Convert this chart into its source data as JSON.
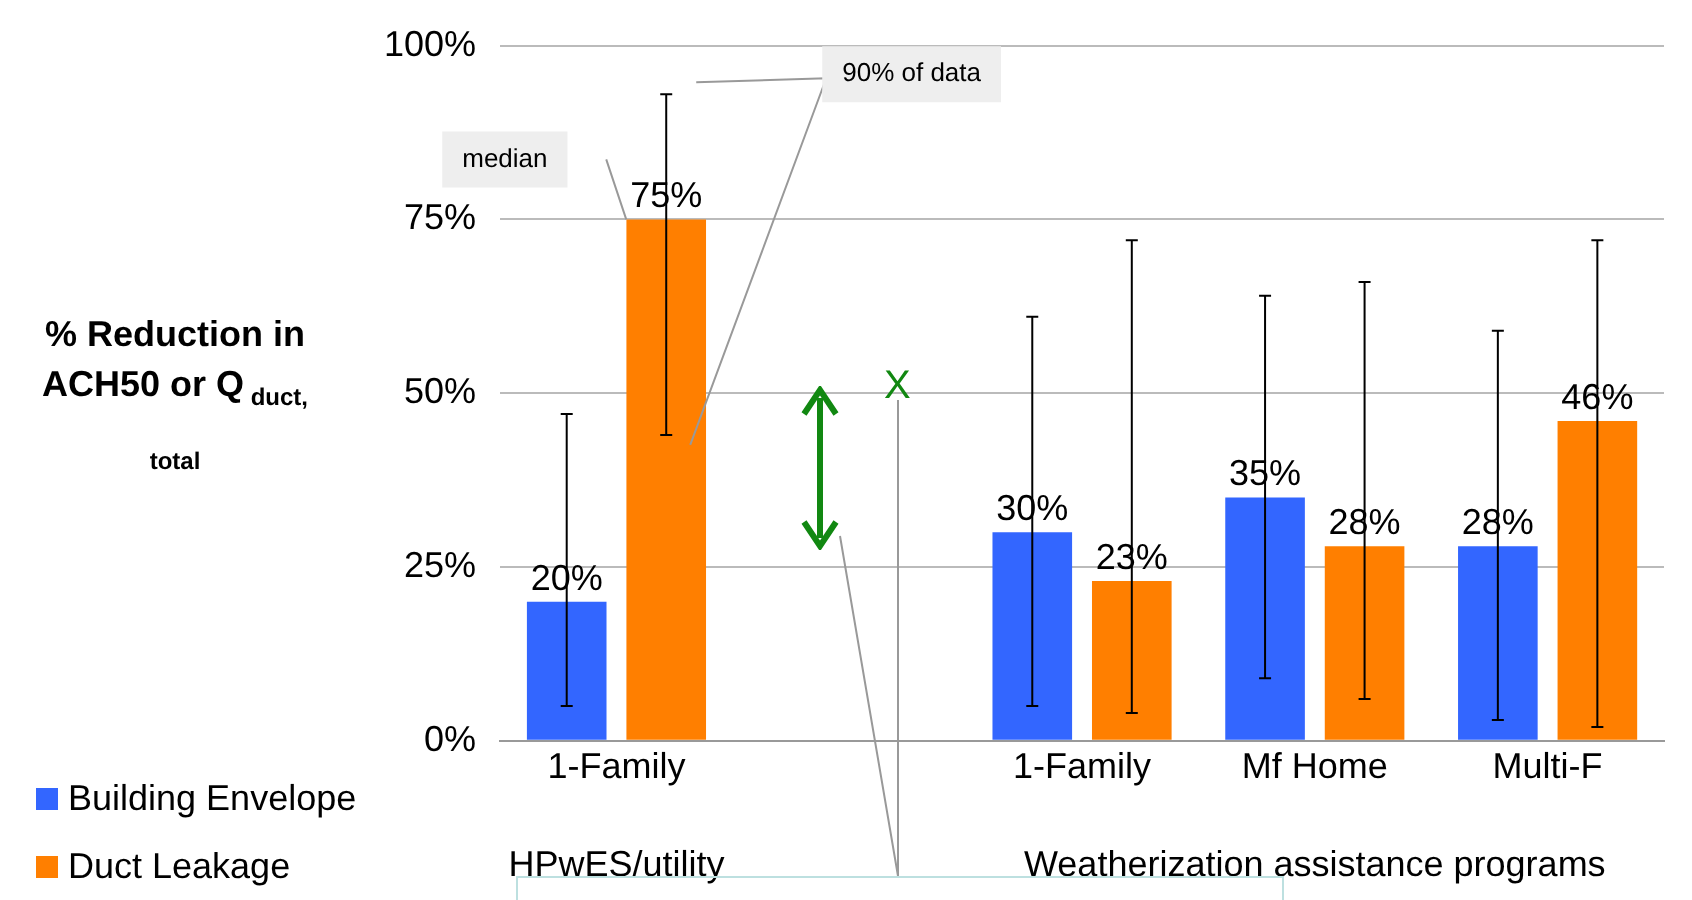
{
  "chart_data": {
    "type": "bar",
    "ylabel": "% Reduction in ACH50 or Q$_{duct, total}$",
    "categories": [
      "1-Family",
      null,
      "1-Family",
      "Mf Home",
      "Multi-F"
    ],
    "series": [
      {
        "name": "Building Envelope",
        "color": "#3366ff",
        "values": [
          20,
          null,
          30,
          35,
          28
        ],
        "value_labels": [
          "20%",
          null,
          "30%",
          "35%",
          "28%"
        ],
        "errors": [
          [
            5,
            47
          ],
          null,
          [
            5,
            61
          ],
          [
            9,
            64
          ],
          [
            3,
            59
          ]
        ]
      },
      {
        "name": "Duct Leakage",
        "color": "#ff7f00",
        "values": [
          75,
          null,
          23,
          28,
          46
        ],
        "value_labels": [
          "75%",
          null,
          "23%",
          "28%",
          "46%"
        ],
        "errors": [
          [
            44,
            93
          ],
          null,
          [
            4,
            72
          ],
          [
            6,
            66
          ],
          [
            2,
            72
          ]
        ]
      }
    ],
    "ylim": [
      0,
      100
    ],
    "yticks": [
      {
        "value": 0,
        "label": "0%"
      },
      {
        "value": 25,
        "label": "25%"
      },
      {
        "value": 50,
        "label": "50%"
      },
      {
        "value": 75,
        "label": "75%"
      },
      {
        "value": 100,
        "label": "100%"
      }
    ],
    "grid": "y",
    "legend": "bottom left",
    "annotations": [
      "HPwES/utility",
      "Weatherization assistance programs",
      "median",
      "90% of data",
      "X"
    ]
  }
}
